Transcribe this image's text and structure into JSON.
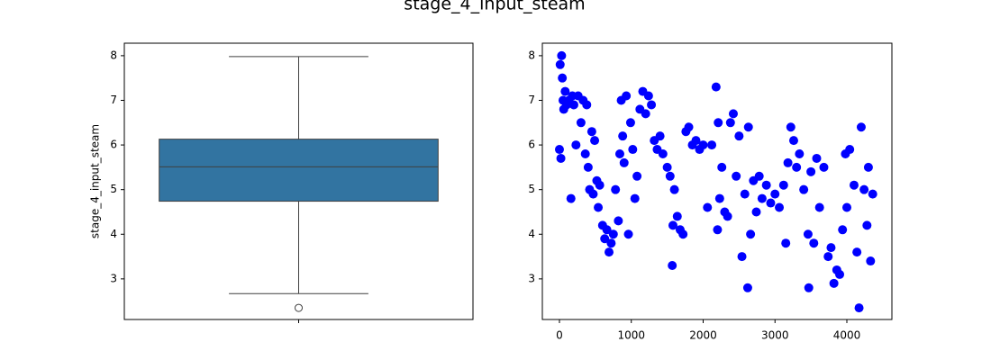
{
  "title": "stage_4_input_steam",
  "chart_data": [
    {
      "type": "box",
      "ylabel": "stage_4_input_steam",
      "categories": [
        null
      ],
      "color": "#3274a1",
      "boxes": [
        {
          "whislo": 2.67,
          "q1": 4.74,
          "med": 5.51,
          "q3": 6.13,
          "whishi": 7.98,
          "fliers": [
            2.35
          ]
        }
      ],
      "ylim": [
        2.09,
        8.28
      ],
      "yticks": [
        3,
        4,
        5,
        6,
        7,
        8
      ]
    },
    {
      "type": "scatter",
      "color": "blue",
      "x": [
        0,
        10,
        20,
        30,
        40,
        50,
        60,
        80,
        100,
        130,
        160,
        180,
        200,
        230,
        260,
        300,
        330,
        360,
        380,
        400,
        420,
        450,
        470,
        490,
        520,
        540,
        560,
        600,
        630,
        660,
        690,
        720,
        750,
        780,
        820,
        840,
        860,
        880,
        900,
        930,
        960,
        990,
        1020,
        1050,
        1080,
        1120,
        1160,
        1200,
        1240,
        1280,
        1320,
        1360,
        1400,
        1440,
        1500,
        1540,
        1570,
        1580,
        1600,
        1640,
        1680,
        1720,
        1760,
        1800,
        1850,
        1900,
        1950,
        2000,
        2060,
        2120,
        2180,
        2200,
        2210,
        2230,
        2260,
        2300,
        2340,
        2380,
        2420,
        2460,
        2500,
        2540,
        2580,
        2620,
        2630,
        2660,
        2700,
        2740,
        2780,
        2820,
        2880,
        2940,
        3000,
        3060,
        3120,
        3150,
        3180,
        3220,
        3260,
        3300,
        3340,
        3400,
        3460,
        3470,
        3500,
        3540,
        3580,
        3620,
        3680,
        3740,
        3780,
        3820,
        3860,
        3900,
        3940,
        3980,
        4000,
        4040,
        4100,
        4140,
        4170,
        4200,
        4240,
        4280,
        4300,
        4330,
        4360
      ],
      "values": [
        5.9,
        7.8,
        5.7,
        8.0,
        7.5,
        7.0,
        6.8,
        7.2,
        6.9,
        7.0,
        4.8,
        7.1,
        6.9,
        6.0,
        7.1,
        6.5,
        7.0,
        5.8,
        6.9,
        5.5,
        5.0,
        6.3,
        4.9,
        6.1,
        5.2,
        4.6,
        5.1,
        4.2,
        3.9,
        4.1,
        3.6,
        3.8,
        4.0,
        5.0,
        4.3,
        5.8,
        7.0,
        6.2,
        5.6,
        7.1,
        4.0,
        6.5,
        5.9,
        4.8,
        5.3,
        6.8,
        7.2,
        6.7,
        7.1,
        6.9,
        6.1,
        5.9,
        6.2,
        5.8,
        5.5,
        5.3,
        3.3,
        4.2,
        5.0,
        4.4,
        4.1,
        4.0,
        6.3,
        6.4,
        6.0,
        6.1,
        5.9,
        6.0,
        4.6,
        6.0,
        7.3,
        4.1,
        6.5,
        4.8,
        5.5,
        4.5,
        4.4,
        6.5,
        6.7,
        5.3,
        6.2,
        3.5,
        4.9,
        2.8,
        6.4,
        4.0,
        5.2,
        4.5,
        5.3,
        4.8,
        5.1,
        4.7,
        4.9,
        4.6,
        5.1,
        3.8,
        5.6,
        6.4,
        6.1,
        5.5,
        5.8,
        5.0,
        4.0,
        2.8,
        5.4,
        3.8,
        5.7,
        4.6,
        5.5,
        3.5,
        3.7,
        2.9,
        3.2,
        3.1,
        4.1,
        5.8,
        4.6,
        5.9,
        5.1,
        3.6,
        2.35,
        6.4,
        5.0,
        4.2,
        5.5,
        3.4,
        4.9
      ],
      "xlim": [
        -238,
        4627
      ],
      "ylim": [
        2.09,
        8.28
      ],
      "xticks": [
        0,
        1000,
        2000,
        3000,
        4000
      ],
      "yticks": [
        3,
        4,
        5,
        6,
        7,
        8
      ]
    }
  ]
}
